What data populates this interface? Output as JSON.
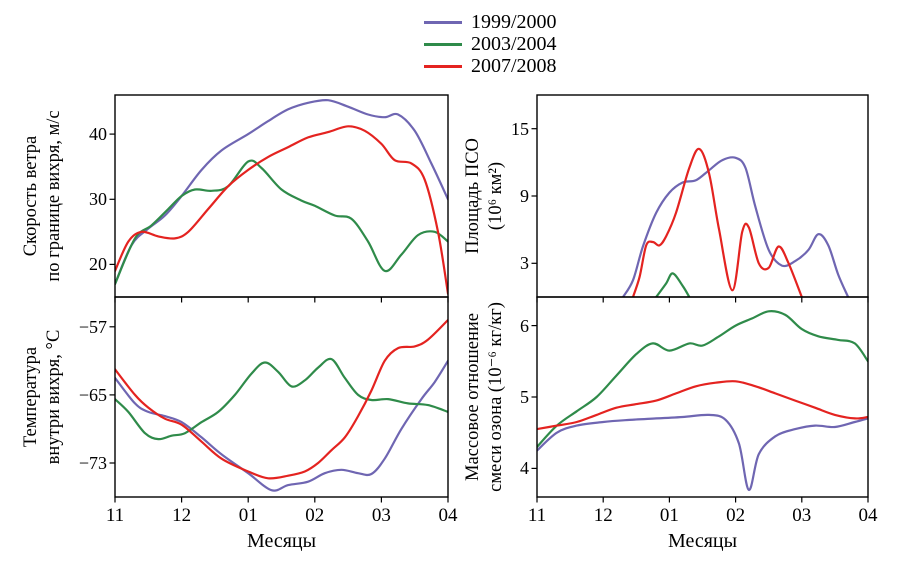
{
  "legend": {
    "items": [
      {
        "label": "1999/2000",
        "color": "#6f66b2"
      },
      {
        "label": "2003/2004",
        "color": "#2f8b4a"
      },
      {
        "label": "2007/2008",
        "color": "#e42320"
      }
    ]
  },
  "x_axis": {
    "title": "Месяцы",
    "tick_labels": [
      "11",
      "12",
      "01",
      "02",
      "03",
      "04"
    ],
    "tick_values": [
      11,
      12,
      13,
      14,
      15,
      16
    ],
    "range": [
      11,
      16
    ],
    "x_encoding": "numeric 11–16 correspond to month labels 11,12,01,02,03,04"
  },
  "chart_data": [
    {
      "type": "line",
      "id": "wind-speed",
      "ylabel": "Скорость ветра по границе вихря, м/с",
      "ylabel_lines": [
        "Скорость ветра",
        "по границе вихря, м/с"
      ],
      "ylim": [
        15,
        46
      ],
      "ytick_values": [
        40,
        30,
        20
      ],
      "ytick_labels": [
        "40",
        "30",
        "20"
      ],
      "grid": false,
      "series": [
        {
          "name": "1999/2000",
          "color": "#6f66b2",
          "points": [
            [
              11,
              17
            ],
            [
              11.25,
              23
            ],
            [
              11.5,
              25.5
            ],
            [
              11.75,
              27.5
            ],
            [
              12,
              30.5
            ],
            [
              12.3,
              34.5
            ],
            [
              12.6,
              37.5
            ],
            [
              13,
              40
            ],
            [
              13.3,
              42
            ],
            [
              13.6,
              43.8
            ],
            [
              13.9,
              44.8
            ],
            [
              14.2,
              45.2
            ],
            [
              14.5,
              44.2
            ],
            [
              14.8,
              43
            ],
            [
              15.05,
              42.6
            ],
            [
              15.25,
              43
            ],
            [
              15.5,
              40.5
            ],
            [
              15.75,
              35.5
            ],
            [
              16,
              30
            ]
          ]
        },
        {
          "name": "2003/2004",
          "color": "#2f8b4a",
          "points": [
            [
              11,
              17
            ],
            [
              11.3,
              24
            ],
            [
              11.55,
              26
            ],
            [
              11.8,
              28.5
            ],
            [
              12,
              30.5
            ],
            [
              12.2,
              31.5
            ],
            [
              12.45,
              31.3
            ],
            [
              12.7,
              32
            ],
            [
              13,
              35.8
            ],
            [
              13.2,
              34.8
            ],
            [
              13.5,
              31.5
            ],
            [
              13.8,
              29.8
            ],
            [
              14,
              29
            ],
            [
              14.3,
              27.5
            ],
            [
              14.55,
              27
            ],
            [
              14.8,
              23.5
            ],
            [
              15.05,
              19
            ],
            [
              15.3,
              21.5
            ],
            [
              15.55,
              24.5
            ],
            [
              15.8,
              25
            ],
            [
              16,
              23.5
            ]
          ]
        },
        {
          "name": "2007/2008",
          "color": "#e42320",
          "points": [
            [
              11,
              19
            ],
            [
              11.2,
              23.5
            ],
            [
              11.4,
              25
            ],
            [
              11.65,
              24.3
            ],
            [
              11.9,
              24
            ],
            [
              12.1,
              25
            ],
            [
              12.4,
              28.5
            ],
            [
              12.7,
              32
            ],
            [
              13,
              34.5
            ],
            [
              13.3,
              36.5
            ],
            [
              13.6,
              38
            ],
            [
              13.9,
              39.5
            ],
            [
              14.2,
              40.3
            ],
            [
              14.5,
              41.2
            ],
            [
              14.75,
              40.5
            ],
            [
              15,
              38.5
            ],
            [
              15.2,
              36
            ],
            [
              15.45,
              35.5
            ],
            [
              15.65,
              33
            ],
            [
              15.85,
              25
            ],
            [
              16,
              15.5
            ]
          ]
        }
      ]
    },
    {
      "type": "line",
      "id": "psc-area",
      "ylabel": "Площадь ПСО (10⁶ км²)",
      "ylabel_lines": [
        "Площадь ПСО",
        "(10⁶ км²)"
      ],
      "ylim": [
        0,
        18
      ],
      "ytick_values": [
        15,
        9,
        3
      ],
      "ytick_labels": [
        "15",
        "9",
        "3"
      ],
      "grid": false,
      "series": [
        {
          "name": "1999/2000",
          "color": "#6f66b2",
          "points": [
            [
              12.3,
              0
            ],
            [
              12.45,
              1.5
            ],
            [
              12.6,
              4.5
            ],
            [
              12.8,
              7.5
            ],
            [
              13,
              9.3
            ],
            [
              13.2,
              10.2
            ],
            [
              13.4,
              10.4
            ],
            [
              13.6,
              11.3
            ],
            [
              13.8,
              12.2
            ],
            [
              14,
              12.4
            ],
            [
              14.15,
              11.5
            ],
            [
              14.3,
              8
            ],
            [
              14.5,
              4.2
            ],
            [
              14.7,
              2.8
            ],
            [
              14.9,
              3.2
            ],
            [
              15.1,
              4.2
            ],
            [
              15.25,
              5.6
            ],
            [
              15.4,
              4.6
            ],
            [
              15.55,
              2
            ],
            [
              15.7,
              0
            ]
          ]
        },
        {
          "name": "2003/2004",
          "color": "#2f8b4a",
          "points": [
            [
              12.8,
              0
            ],
            [
              12.95,
              1.2
            ],
            [
              13.05,
              2.1
            ],
            [
              13.2,
              1
            ],
            [
              13.3,
              0
            ]
          ]
        },
        {
          "name": "2007/2008",
          "color": "#e42320",
          "points": [
            [
              12.45,
              0
            ],
            [
              12.55,
              1.8
            ],
            [
              12.65,
              4.6
            ],
            [
              12.75,
              4.9
            ],
            [
              12.85,
              4.6
            ],
            [
              12.95,
              5.4
            ],
            [
              13.1,
              7.5
            ],
            [
              13.3,
              11.5
            ],
            [
              13.45,
              13.2
            ],
            [
              13.6,
              11
            ],
            [
              13.75,
              6
            ],
            [
              13.95,
              0.6
            ],
            [
              14.1,
              5.8
            ],
            [
              14.2,
              6.2
            ],
            [
              14.35,
              3
            ],
            [
              14.5,
              2.6
            ],
            [
              14.65,
              4.5
            ],
            [
              14.8,
              3
            ],
            [
              15,
              0
            ]
          ]
        }
      ]
    },
    {
      "type": "line",
      "id": "temperature",
      "ylabel": "Температура внутри вихря, °С",
      "ylabel_lines": [
        "Температура",
        "внутри вихря, °С"
      ],
      "ylim": [
        -77,
        -53.5
      ],
      "ytick_values": [
        -57,
        -65,
        -73
      ],
      "ytick_labels": [
        "−57",
        "−65",
        "−73"
      ],
      "grid": false,
      "series": [
        {
          "name": "1999/2000",
          "color": "#6f66b2",
          "points": [
            [
              11,
              -63
            ],
            [
              11.3,
              -66
            ],
            [
              11.5,
              -67
            ],
            [
              11.75,
              -67.5
            ],
            [
              12,
              -68.2
            ],
            [
              12.3,
              -70
            ],
            [
              12.6,
              -72
            ],
            [
              13,
              -74.2
            ],
            [
              13.35,
              -76.2
            ],
            [
              13.6,
              -75.6
            ],
            [
              13.9,
              -75.2
            ],
            [
              14.15,
              -74.2
            ],
            [
              14.4,
              -73.8
            ],
            [
              14.65,
              -74.2
            ],
            [
              14.85,
              -74.3
            ],
            [
              15.05,
              -72.5
            ],
            [
              15.3,
              -69
            ],
            [
              15.6,
              -65.5
            ],
            [
              15.8,
              -63.5
            ],
            [
              16,
              -61
            ]
          ]
        },
        {
          "name": "2003/2004",
          "color": "#2f8b4a",
          "points": [
            [
              11,
              -65.5
            ],
            [
              11.2,
              -67
            ],
            [
              11.45,
              -69.5
            ],
            [
              11.65,
              -70.2
            ],
            [
              11.85,
              -69.8
            ],
            [
              12.05,
              -69.5
            ],
            [
              12.3,
              -68.2
            ],
            [
              12.55,
              -67
            ],
            [
              12.8,
              -65
            ],
            [
              13.05,
              -62.5
            ],
            [
              13.25,
              -61.2
            ],
            [
              13.45,
              -62.3
            ],
            [
              13.65,
              -64
            ],
            [
              13.85,
              -63.3
            ],
            [
              14.05,
              -61.8
            ],
            [
              14.25,
              -60.8
            ],
            [
              14.45,
              -63
            ],
            [
              14.65,
              -65
            ],
            [
              14.85,
              -65.6
            ],
            [
              15.1,
              -65.5
            ],
            [
              15.4,
              -66
            ],
            [
              15.7,
              -66.2
            ],
            [
              16,
              -67
            ]
          ]
        },
        {
          "name": "2007/2008",
          "color": "#e42320",
          "points": [
            [
              11,
              -62
            ],
            [
              11.3,
              -65
            ],
            [
              11.5,
              -66.5
            ],
            [
              11.75,
              -67.8
            ],
            [
              12,
              -68.5
            ],
            [
              12.3,
              -70.5
            ],
            [
              12.6,
              -72.5
            ],
            [
              13,
              -74
            ],
            [
              13.3,
              -74.8
            ],
            [
              13.6,
              -74.5
            ],
            [
              13.85,
              -74
            ],
            [
              14.05,
              -73
            ],
            [
              14.25,
              -71.5
            ],
            [
              14.45,
              -70
            ],
            [
              14.65,
              -67.5
            ],
            [
              14.85,
              -64.5
            ],
            [
              15.05,
              -61
            ],
            [
              15.25,
              -59.5
            ],
            [
              15.5,
              -59.3
            ],
            [
              15.7,
              -58.5
            ],
            [
              16,
              -56.2
            ]
          ]
        }
      ]
    },
    {
      "type": "line",
      "id": "ozone",
      "ylabel": "Массовое отношение смеси озона (10⁻⁶ кг/кг)",
      "ylabel_lines": [
        "Массовое отношение",
        "смеси озона (10⁻⁶ кг/кг)"
      ],
      "ylim": [
        3.6,
        6.4
      ],
      "ytick_values": [
        6,
        5,
        4
      ],
      "ytick_labels": [
        "6",
        "5",
        "4"
      ],
      "grid": false,
      "series": [
        {
          "name": "1999/2000",
          "color": "#6f66b2",
          "points": [
            [
              11,
              4.25
            ],
            [
              11.3,
              4.5
            ],
            [
              11.6,
              4.6
            ],
            [
              12,
              4.65
            ],
            [
              12.4,
              4.68
            ],
            [
              12.8,
              4.7
            ],
            [
              13.2,
              4.72
            ],
            [
              13.6,
              4.75
            ],
            [
              13.85,
              4.68
            ],
            [
              14.05,
              4.35
            ],
            [
              14.2,
              3.7
            ],
            [
              14.35,
              4.2
            ],
            [
              14.6,
              4.45
            ],
            [
              14.9,
              4.55
            ],
            [
              15.2,
              4.6
            ],
            [
              15.5,
              4.58
            ],
            [
              15.8,
              4.65
            ],
            [
              16,
              4.7
            ]
          ]
        },
        {
          "name": "2003/2004",
          "color": "#2f8b4a",
          "points": [
            [
              11,
              4.3
            ],
            [
              11.3,
              4.6
            ],
            [
              11.6,
              4.8
            ],
            [
              11.9,
              5.0
            ],
            [
              12.2,
              5.3
            ],
            [
              12.5,
              5.6
            ],
            [
              12.75,
              5.75
            ],
            [
              13,
              5.65
            ],
            [
              13.3,
              5.75
            ],
            [
              13.5,
              5.72
            ],
            [
              13.75,
              5.85
            ],
            [
              14,
              6.0
            ],
            [
              14.25,
              6.1
            ],
            [
              14.5,
              6.2
            ],
            [
              14.75,
              6.15
            ],
            [
              15,
              5.95
            ],
            [
              15.25,
              5.85
            ],
            [
              15.55,
              5.8
            ],
            [
              15.8,
              5.75
            ],
            [
              16,
              5.5
            ]
          ]
        },
        {
          "name": "2007/2008",
          "color": "#e42320",
          "points": [
            [
              11,
              4.55
            ],
            [
              11.3,
              4.6
            ],
            [
              11.6,
              4.65
            ],
            [
              11.9,
              4.75
            ],
            [
              12.2,
              4.85
            ],
            [
              12.5,
              4.9
            ],
            [
              12.8,
              4.95
            ],
            [
              13.1,
              5.05
            ],
            [
              13.4,
              5.15
            ],
            [
              13.7,
              5.2
            ],
            [
              14,
              5.22
            ],
            [
              14.3,
              5.15
            ],
            [
              14.6,
              5.05
            ],
            [
              14.9,
              4.95
            ],
            [
              15.2,
              4.85
            ],
            [
              15.5,
              4.75
            ],
            [
              15.8,
              4.7
            ],
            [
              16,
              4.72
            ]
          ]
        }
      ]
    }
  ]
}
